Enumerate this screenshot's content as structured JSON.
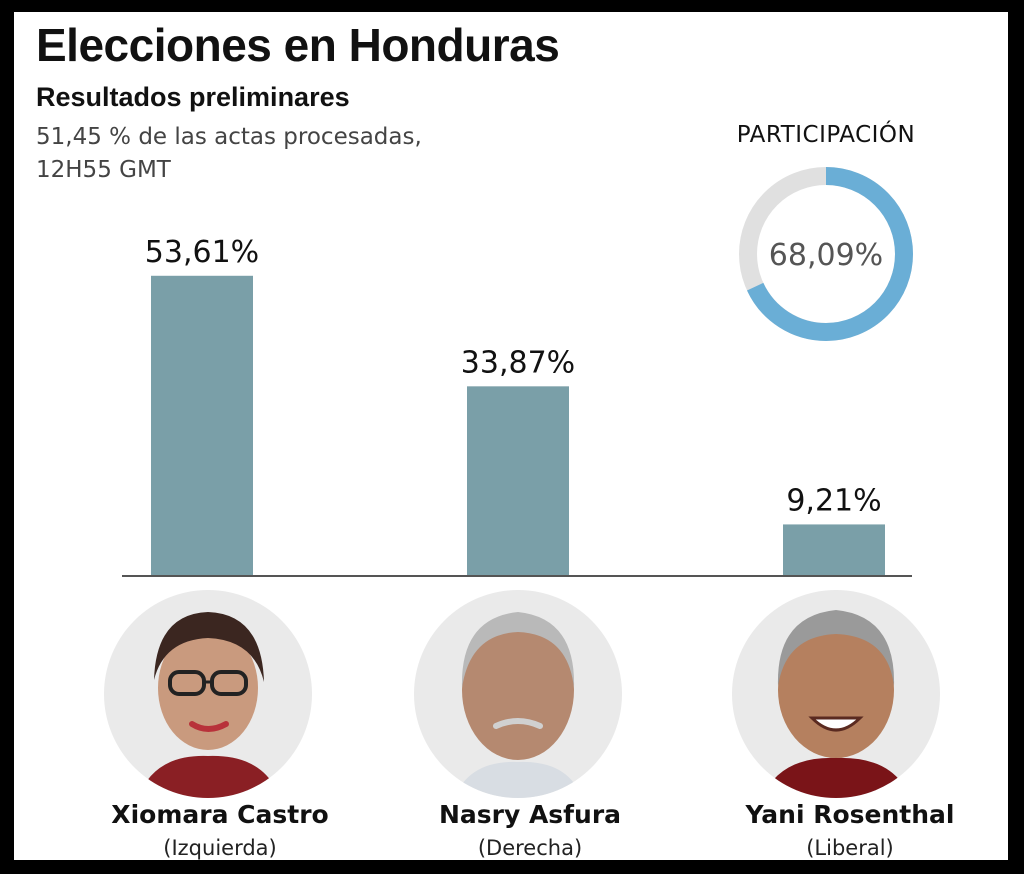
{
  "header": {
    "title": "Elecciones en Honduras",
    "subtitle": "Resultados preliminares",
    "note_line1": "51,45 % de las actas procesadas,",
    "note_line2": "12H55 GMT"
  },
  "chart_data": [
    {
      "type": "bar",
      "categories": [
        "Xiomara Castro",
        "Nasry Asfura",
        "Yani Rosenthal"
      ],
      "values": [
        53.61,
        33.87,
        9.21
      ],
      "value_labels": [
        "53,61%",
        "33,87%",
        "9,21%"
      ],
      "ylim": [
        0,
        60
      ],
      "grid": false,
      "bar_color": "#7a9fa8"
    },
    {
      "type": "pie",
      "title": "PARTICIPACIÓN",
      "values": [
        68.09,
        31.91
      ],
      "value_label": "68,09%",
      "colors": [
        "#6aaed6",
        "#e0e0e0"
      ]
    }
  ],
  "candidates": [
    {
      "name": "Xiomara Castro",
      "party": "(Izquierda)"
    },
    {
      "name": "Nasry Asfura",
      "party": "(Derecha)"
    },
    {
      "name": "Yani Rosenthal",
      "party": "(Liberal)"
    }
  ],
  "colors": {
    "bar": "#7a9fa8",
    "donut_fill": "#6aaed6",
    "donut_track": "#e0e0e0",
    "frame": "#000000"
  }
}
